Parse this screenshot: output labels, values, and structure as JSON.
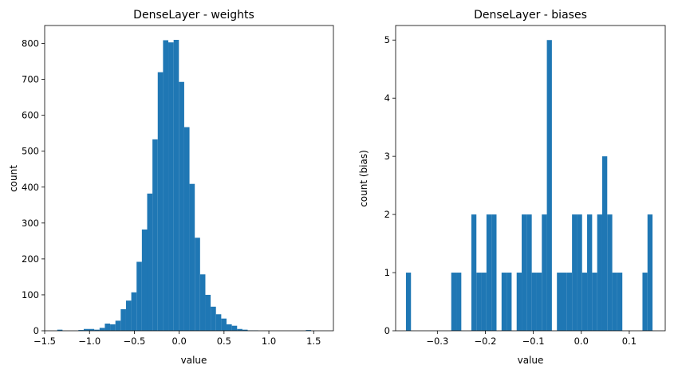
{
  "chart_data": [
    {
      "type": "bar",
      "title": "DenseLayer - weights",
      "xlabel": "value",
      "ylabel": "count",
      "xlim": [
        -1.5,
        1.72
      ],
      "ylim": [
        0,
        850
      ],
      "xticks": [
        -1.5,
        -1.0,
        -0.5,
        0.0,
        0.5,
        1.0,
        1.5
      ],
      "xtick_labels": [
        "−1.5",
        "−1.0",
        "−0.5",
        "0.0",
        "0.5",
        "1.0",
        "1.5"
      ],
      "yticks": [
        0,
        100,
        200,
        300,
        400,
        500,
        600,
        700,
        800
      ],
      "ytick_labels": [
        "0",
        "100",
        "200",
        "300",
        "400",
        "500",
        "600",
        "700",
        "800"
      ],
      "bin_start": -1.36,
      "bin_width": 0.059,
      "values": [
        3,
        0,
        0,
        0,
        2,
        5,
        5,
        3,
        8,
        20,
        18,
        28,
        60,
        84,
        107,
        192,
        282,
        382,
        533,
        720,
        809,
        803,
        810,
        693,
        567,
        409,
        259,
        157,
        100,
        67,
        46,
        34,
        18,
        14,
        5,
        3,
        1,
        1,
        0,
        0,
        0,
        0,
        0,
        0,
        0,
        0,
        0,
        2
      ],
      "color": "#1f77b4",
      "grid": false
    },
    {
      "type": "bar",
      "title": "DenseLayer - biases",
      "xlabel": "value",
      "ylabel": "count (bias)",
      "xlim": [
        -0.387,
        0.175
      ],
      "ylim": [
        0,
        5.25
      ],
      "xticks": [
        -0.3,
        -0.2,
        -0.1,
        0.0,
        0.1
      ],
      "xtick_labels": [
        "−0.3",
        "−0.2",
        "−0.1",
        "0.0",
        "0.1"
      ],
      "yticks": [
        0,
        1,
        2,
        3,
        4,
        5
      ],
      "ytick_labels": [
        "0",
        "1",
        "2",
        "3",
        "4",
        "5"
      ],
      "bin_start": -0.3655,
      "bin_width": 0.01049,
      "values": [
        1,
        0,
        0,
        0,
        0,
        0,
        0,
        0,
        0,
        1,
        1,
        0,
        0,
        2,
        1,
        1,
        2,
        2,
        0,
        1,
        1,
        0,
        1,
        2,
        2,
        1,
        1,
        2,
        5,
        0,
        1,
        1,
        1,
        2,
        2,
        1,
        2,
        1,
        2,
        3,
        2,
        1,
        1,
        0,
        0,
        0,
        0,
        1,
        2
      ],
      "color": "#1f77b4",
      "grid": false
    }
  ]
}
